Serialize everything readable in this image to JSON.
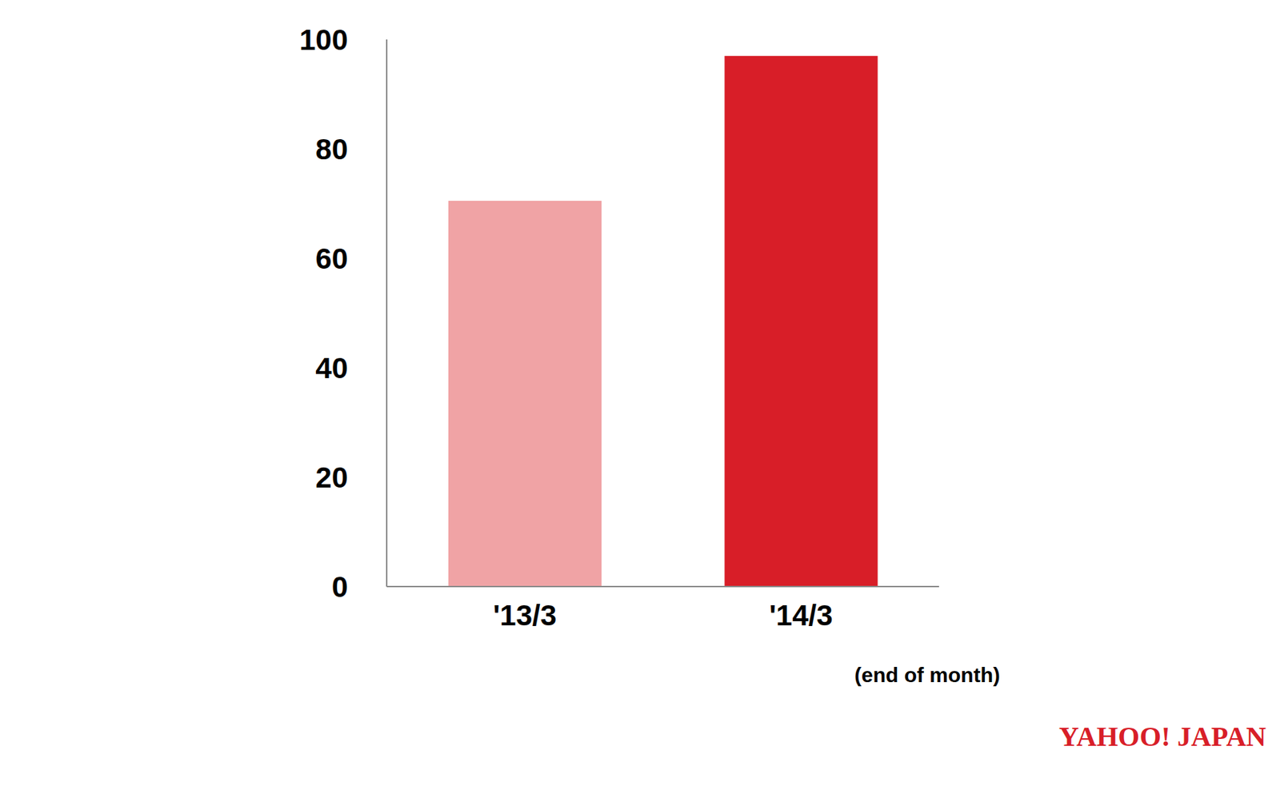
{
  "chart_data": {
    "type": "bar",
    "categories": [
      "'13/3",
      "'14/3"
    ],
    "values": [
      70.5,
      97
    ],
    "colors": [
      "#f0a3a5",
      "#d81e28"
    ],
    "ylim": [
      0,
      100
    ],
    "yticks": [
      0,
      20,
      40,
      60,
      80,
      100
    ],
    "grid": false,
    "data_labels": false,
    "annotations": [
      "(end of month)",
      "YAHOO! JAPAN"
    ]
  }
}
